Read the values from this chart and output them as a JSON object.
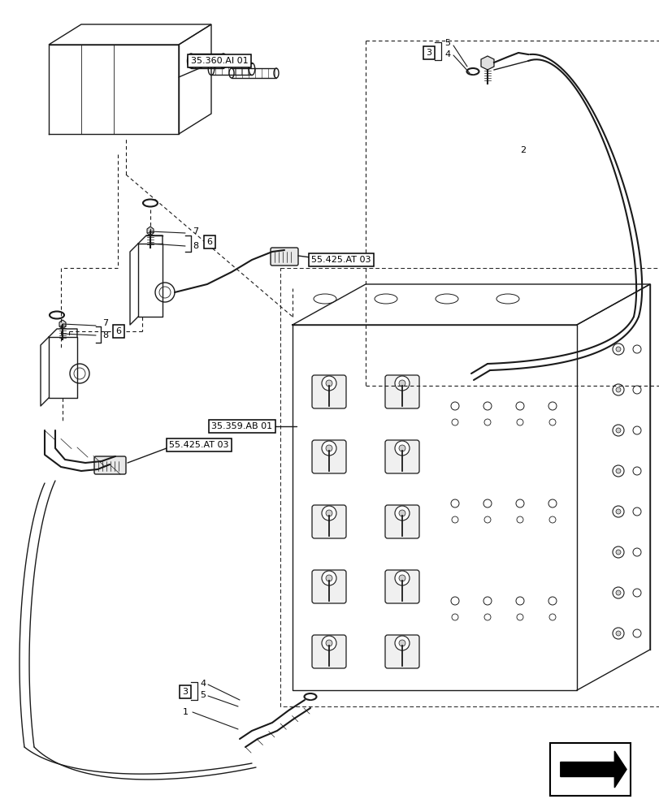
{
  "bg_color": "#ffffff",
  "line_color": "#1a1a1a",
  "fig_width": 8.12,
  "fig_height": 10.0,
  "dpi": 100,
  "labels": {
    "ref_35360AI01": "35.360.AI 01",
    "ref_55425AT03_1": "55.425.AT 03",
    "ref_55425AT03_2": "55.425.AT 03",
    "ref_35359AB01": "35.359.AB 01"
  },
  "item_numbers": {
    "n1": "1",
    "n2": "2",
    "n3": "3",
    "n4": "4",
    "n5": "5",
    "n6": "6",
    "n7": "7",
    "n8": "8"
  }
}
